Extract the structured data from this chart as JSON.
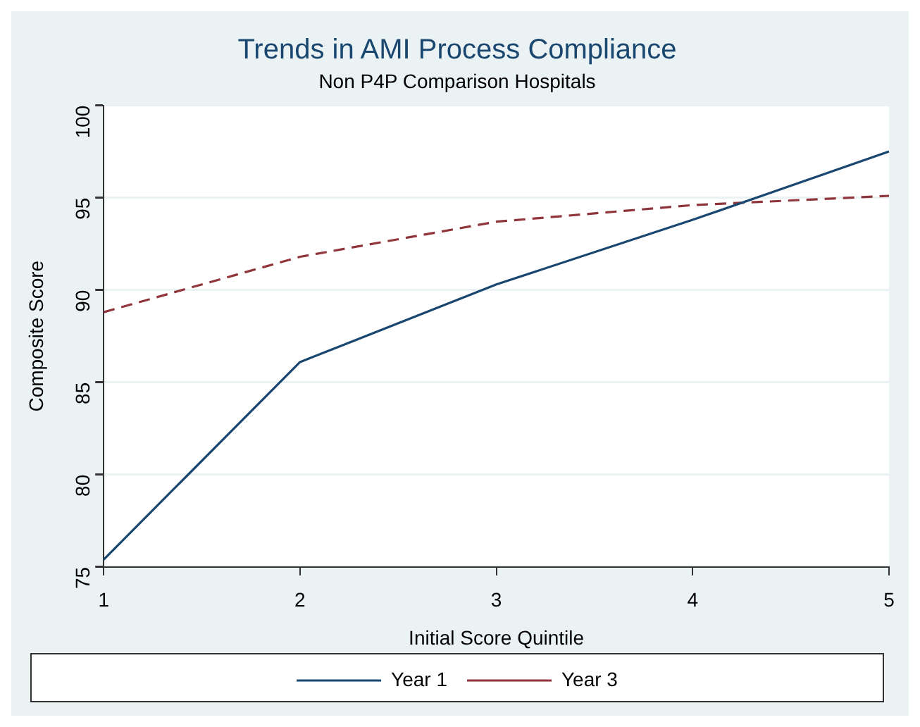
{
  "chart_data": {
    "type": "line",
    "title": "Trends in AMI Process Compliance",
    "subtitle": "Non P4P Comparison Hospitals",
    "xlabel": "Initial Score Quintile",
    "ylabel": "Composite Score",
    "x": [
      1,
      2,
      3,
      4,
      5
    ],
    "series": [
      {
        "name": "Year 1",
        "color": "#1a476f",
        "values": [
          75.4,
          86.1,
          90.3,
          93.8,
          97.5
        ],
        "line_style": "solid"
      },
      {
        "name": "Year 3",
        "color": "#90353b",
        "values": [
          88.8,
          91.8,
          93.7,
          94.6,
          95.1
        ],
        "line_style": "dashed"
      }
    ],
    "xlim": [
      1,
      5
    ],
    "xticks": [
      1,
      2,
      3,
      4,
      5
    ],
    "ylim": [
      75,
      100
    ],
    "yticks": [
      75,
      80,
      85,
      90,
      95,
      100
    ],
    "grid": "y",
    "legend": "bottom",
    "marker": "none"
  }
}
